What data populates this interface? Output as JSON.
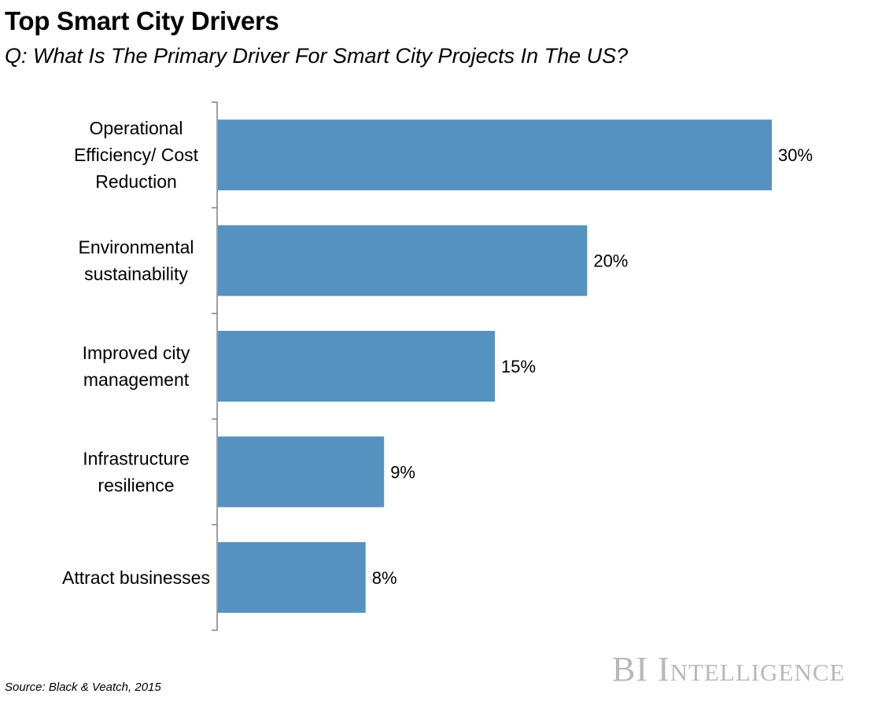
{
  "title": "Top Smart City Drivers",
  "subtitle": "Q: What Is The Primary Driver For Smart City Projects In The US?",
  "source": "Source: Black & Veatch, 2015",
  "brand": "BI Intelligence",
  "colors": {
    "bar": "#5592bf",
    "axis": "#808080",
    "brand": "#b8b8b8"
  },
  "chart_data": {
    "type": "bar",
    "orientation": "horizontal",
    "title": "Top Smart City Drivers",
    "subtitle": "Q: What Is The Primary Driver For Smart City Projects In The US?",
    "xlabel": "",
    "ylabel": "",
    "xlim": [
      0,
      30
    ],
    "grid": false,
    "categories": [
      [
        "Operational",
        "Efficiency/ Cost",
        "Reduction"
      ],
      [
        "Environmental",
        "sustainability"
      ],
      [
        "Improved city",
        "management"
      ],
      [
        "Infrastructure",
        "resilience"
      ],
      [
        "Attract businesses"
      ]
    ],
    "values": [
      30,
      20,
      15,
      9,
      8
    ],
    "data_labels": [
      "30%",
      "20%",
      "15%",
      "9%",
      "8%"
    ]
  }
}
